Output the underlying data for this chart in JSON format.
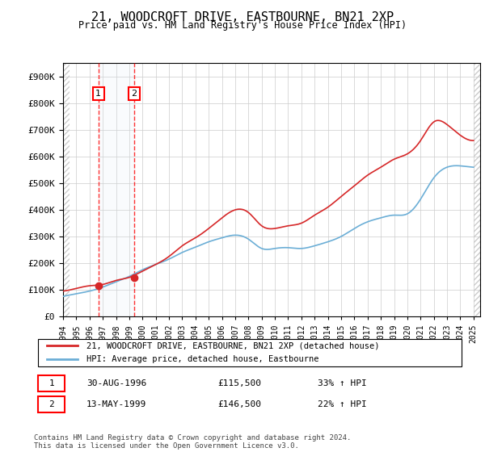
{
  "title": "21, WOODCROFT DRIVE, EASTBOURNE, BN21 2XP",
  "subtitle": "Price paid vs. HM Land Registry's House Price Index (HPI)",
  "ylabel_ticks": [
    "£0",
    "£100K",
    "£200K",
    "£300K",
    "£400K",
    "£500K",
    "£600K",
    "£700K",
    "£800K",
    "£900K"
  ],
  "ytick_values": [
    0,
    100000,
    200000,
    300000,
    400000,
    500000,
    600000,
    700000,
    800000,
    900000
  ],
  "ylim": [
    0,
    950000
  ],
  "xlim_start": 1994.0,
  "xlim_end": 2025.5,
  "hpi_color": "#6baed6",
  "price_color": "#d62728",
  "sale1_year": 1996.667,
  "sale1_price": 115500,
  "sale2_year": 1999.375,
  "sale2_price": 146500,
  "legend_label1": "21, WOODCROFT DRIVE, EASTBOURNE, BN21 2XP (detached house)",
  "legend_label2": "HPI: Average price, detached house, Eastbourne",
  "table_row1": [
    "1",
    "30-AUG-1996",
    "£115,500",
    "33% ↑ HPI"
  ],
  "table_row2": [
    "2",
    "13-MAY-1999",
    "£146,500",
    "22% ↑ HPI"
  ],
  "footer": "Contains HM Land Registry data © Crown copyright and database right 2024.\nThis data is licensed under the Open Government Licence v3.0.",
  "hatch_color": "#cccccc",
  "bg_color": "#ffffff",
  "grid_color": "#cccccc",
  "shade_color": "#dce9f5"
}
